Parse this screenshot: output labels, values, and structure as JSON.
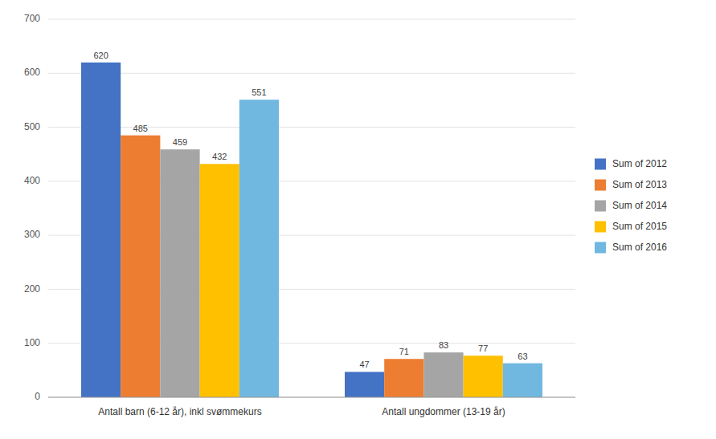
{
  "chart_data": {
    "type": "bar",
    "categories": [
      "Antall barn (6-12 år), inkl svømmekurs",
      "Antall ungdommer (13-19 år)"
    ],
    "series": [
      {
        "name": "Sum of 2012",
        "color": "#4472C4",
        "values": [
          620,
          47
        ]
      },
      {
        "name": "Sum of 2013",
        "color": "#ED7D31",
        "values": [
          485,
          71
        ]
      },
      {
        "name": "Sum of 2014",
        "color": "#A5A5A5",
        "values": [
          459,
          83
        ]
      },
      {
        "name": "Sum of 2015",
        "color": "#FFC000",
        "values": [
          432,
          77
        ]
      },
      {
        "name": "Sum of 2016",
        "color": "#70B8E0",
        "values": [
          551,
          63
        ]
      }
    ],
    "ylim": [
      0,
      700
    ],
    "yticks": [
      0,
      100,
      200,
      300,
      400,
      500,
      600,
      700
    ],
    "grid": true,
    "legend": "right",
    "data_labels": true
  }
}
